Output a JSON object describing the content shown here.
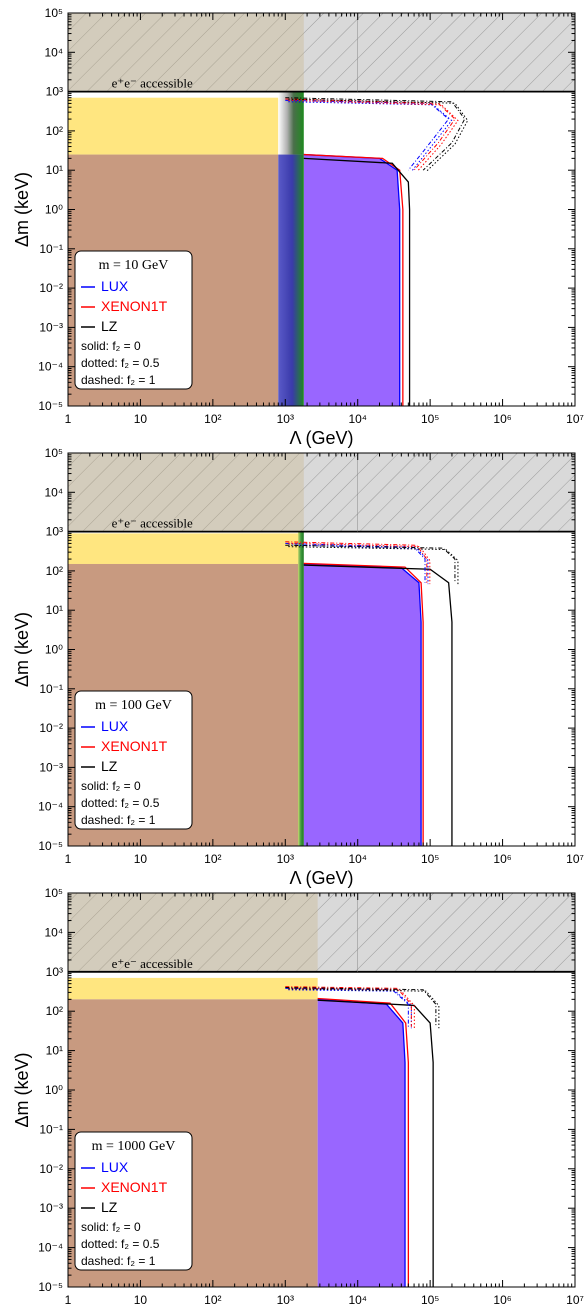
{
  "colors": {
    "LUX": "#0000ff",
    "XENON1T": "#ff0000",
    "LZ": "#000000",
    "hatch_fill": "#d6d6d6",
    "yellow": "#ffe680",
    "brown": "#c89a80",
    "purple": "#9966ff",
    "green": "#1f8a1f",
    "blue_band": "#3a3aaa"
  },
  "chart_data": [
    {
      "type": "line",
      "xlabel": "Λ (GeV)",
      "ylabel": "Δm (keV)",
      "xscale": "log",
      "yscale": "log",
      "xlim": [
        1,
        10000000
      ],
      "ylim": [
        1e-05,
        100000
      ],
      "x_tick_labels": [
        "1",
        "10",
        "10²",
        "10³",
        "10⁴",
        "10⁵",
        "10⁶",
        "10⁷"
      ],
      "y_tick_labels": [
        "10⁻⁵",
        "10⁻⁴",
        "10⁻³",
        "10⁻²",
        "10⁻¹",
        "10⁰",
        "10¹",
        "10²",
        "10³",
        "10⁴",
        "10⁵"
      ],
      "annotation": "e⁺e⁻  accessible",
      "accessible_dm_min": 1000,
      "legend": {
        "title": "m = 10 GeV",
        "placement": "lower-left",
        "entries": [
          "LUX",
          "XENON1T",
          "LZ"
        ],
        "line_styles": [
          "solid: f₂ = 0",
          "dotted: f₂ = 0.5",
          "dashed: f₂ = 1"
        ]
      },
      "regions": {
        "brown": {
          "lambda_max": 800,
          "dm_max": 25
        },
        "yellow": {
          "lambda_max": 800,
          "dm_min": 25,
          "dm_max": 700
        },
        "green_band": {
          "lambda_min": 800,
          "lambda_max": 1800
        },
        "purple": {
          "lambda_min": 1800,
          "lambda_max": 35000,
          "dm_max": 25
        }
      },
      "series": [
        {
          "name": "LUX",
          "values": [
            [
              1800,
              25
            ],
            [
              20000,
              20
            ],
            [
              35000,
              10
            ],
            [
              38000,
              1
            ],
            [
              38000,
              1e-05
            ]
          ]
        },
        {
          "name": "XENON1T",
          "values": [
            [
              1800,
              25
            ],
            [
              22000,
              20
            ],
            [
              38000,
              10
            ],
            [
              42000,
              1
            ],
            [
              42000,
              1e-05
            ]
          ]
        },
        {
          "name": "LZ",
          "values": [
            [
              1800,
              20
            ],
            [
              30000,
              15
            ],
            [
              50000,
              5
            ],
            [
              52000,
              1
            ],
            [
              52000,
              1e-05
            ]
          ]
        }
      ],
      "dashed_bumps": [
        {
          "name": "LUX",
          "values": [
            [
              1000,
              600
            ],
            [
              100000,
              500
            ],
            [
              180000,
              200
            ],
            [
              100000,
              50
            ],
            [
              50000,
              10
            ]
          ]
        },
        {
          "name": "XENON1T",
          "values": [
            [
              1000,
              650
            ],
            [
              130000,
              500
            ],
            [
              220000,
              200
            ],
            [
              130000,
              50
            ],
            [
              60000,
              10
            ]
          ]
        },
        {
          "name": "LZ",
          "values": [
            [
              1000,
              700
            ],
            [
              200000,
              550
            ],
            [
              300000,
              200
            ],
            [
              200000,
              50
            ],
            [
              80000,
              10
            ]
          ]
        }
      ]
    },
    {
      "type": "line",
      "xlabel": "Λ (GeV)",
      "ylabel": "Δm (keV)",
      "xscale": "log",
      "yscale": "log",
      "xlim": [
        1,
        10000000
      ],
      "ylim": [
        1e-05,
        100000
      ],
      "x_tick_labels": [
        "1",
        "10",
        "10²",
        "10³",
        "10⁴",
        "10⁵",
        "10⁶",
        "10⁷"
      ],
      "y_tick_labels": [
        "10⁻⁵",
        "10⁻⁴",
        "10⁻³",
        "10⁻²",
        "10⁻¹",
        "10⁰",
        "10¹",
        "10²",
        "10³",
        "10⁴",
        "10⁵"
      ],
      "annotation": "e⁺e⁻  accessible",
      "accessible_dm_min": 1000,
      "legend": {
        "title": "m = 100 GeV",
        "placement": "lower-left",
        "entries": [
          "LUX",
          "XENON1T",
          "LZ"
        ],
        "line_styles": [
          "solid: f₂ = 0",
          "dotted: f₂ = 0.5",
          "dashed: f₂ = 1"
        ]
      },
      "regions": {
        "brown": {
          "lambda_max": 1600,
          "dm_max": 150
        },
        "yellow": {
          "lambda_max": 1600,
          "dm_min": 150,
          "dm_max": 900
        },
        "green_band": {
          "lambda_min": 1500,
          "lambda_max": 1800
        },
        "purple": {
          "lambda_min": 1800,
          "lambda_max": 75000,
          "dm_max": 150
        }
      },
      "series": [
        {
          "name": "LUX",
          "values": [
            [
              1800,
              150
            ],
            [
              40000,
              120
            ],
            [
              70000,
              50
            ],
            [
              75000,
              5
            ],
            [
              75000,
              1e-05
            ]
          ]
        },
        {
          "name": "XENON1T",
          "values": [
            [
              1800,
              155
            ],
            [
              45000,
              125
            ],
            [
              75000,
              50
            ],
            [
              80000,
              5
            ],
            [
              80000,
              1e-05
            ]
          ]
        },
        {
          "name": "LZ",
          "values": [
            [
              1800,
              140
            ],
            [
              100000,
              110
            ],
            [
              180000,
              50
            ],
            [
              200000,
              5
            ],
            [
              200000,
              1e-05
            ]
          ]
        }
      ],
      "dashed_bumps": [
        {
          "name": "LUX",
          "values": [
            [
              1000,
              500
            ],
            [
              60000,
              400
            ],
            [
              85000,
              200
            ],
            [
              85000,
              50
            ]
          ]
        },
        {
          "name": "XENON1T",
          "values": [
            [
              1000,
              550
            ],
            [
              65000,
              450
            ],
            [
              90000,
              200
            ],
            [
              90000,
              50
            ]
          ]
        },
        {
          "name": "LZ",
          "values": [
            [
              1000,
              450
            ],
            [
              150000,
              380
            ],
            [
              220000,
              200
            ],
            [
              220000,
              50
            ]
          ]
        }
      ]
    },
    {
      "type": "line",
      "xlabel": "Λ (GeV)",
      "ylabel": "Δm (keV)",
      "xscale": "log",
      "yscale": "log",
      "xlim": [
        1,
        10000000
      ],
      "ylim": [
        1e-05,
        100000
      ],
      "x_tick_labels": [
        "1",
        "10",
        "10²",
        "10³",
        "10⁴",
        "10⁵",
        "10⁶",
        "10⁷"
      ],
      "y_tick_labels": [
        "10⁻⁵",
        "10⁻⁴",
        "10⁻³",
        "10⁻²",
        "10⁻¹",
        "10⁰",
        "10¹",
        "10²",
        "10³",
        "10⁴",
        "10⁵"
      ],
      "annotation": "e⁺e⁻  accessible",
      "accessible_dm_min": 1000,
      "legend": {
        "title": "m = 1000 GeV",
        "placement": "lower-left",
        "entries": [
          "LUX",
          "XENON1T",
          "LZ"
        ],
        "line_styles": [
          "solid: f₂ = 0",
          "dotted: f₂ = 0.5",
          "dashed: f₂ = 1"
        ]
      },
      "regions": {
        "brown": {
          "lambda_max": 2800,
          "dm_max": 200
        },
        "yellow": {
          "lambda_max": 2800,
          "dm_min": 200,
          "dm_max": 700
        },
        "green_band": null,
        "purple": {
          "lambda_min": 2800,
          "lambda_max": 45000,
          "dm_max": 200
        }
      },
      "series": [
        {
          "name": "LUX",
          "values": [
            [
              2800,
              200
            ],
            [
              25000,
              150
            ],
            [
              42000,
              50
            ],
            [
              45000,
              5
            ],
            [
              45000,
              1e-05
            ]
          ]
        },
        {
          "name": "XENON1T",
          "values": [
            [
              2800,
              210
            ],
            [
              28000,
              160
            ],
            [
              46000,
              50
            ],
            [
              50000,
              5
            ],
            [
              50000,
              1e-05
            ]
          ]
        },
        {
          "name": "LZ",
          "values": [
            [
              2800,
              190
            ],
            [
              60000,
              140
            ],
            [
              100000,
              50
            ],
            [
              110000,
              5
            ],
            [
              110000,
              1e-05
            ]
          ]
        }
      ],
      "dashed_bumps": [
        {
          "name": "LUX",
          "values": [
            [
              1000,
              380
            ],
            [
              30000,
              350
            ],
            [
              50000,
              150
            ],
            [
              50000,
              40
            ]
          ]
        },
        {
          "name": "XENON1T",
          "values": [
            [
              1000,
              420
            ],
            [
              35000,
              380
            ],
            [
              55000,
              150
            ],
            [
              55000,
              40
            ]
          ]
        },
        {
          "name": "LZ",
          "values": [
            [
              1000,
              400
            ],
            [
              80000,
              350
            ],
            [
              120000,
              150
            ],
            [
              120000,
              40
            ]
          ]
        }
      ]
    }
  ]
}
